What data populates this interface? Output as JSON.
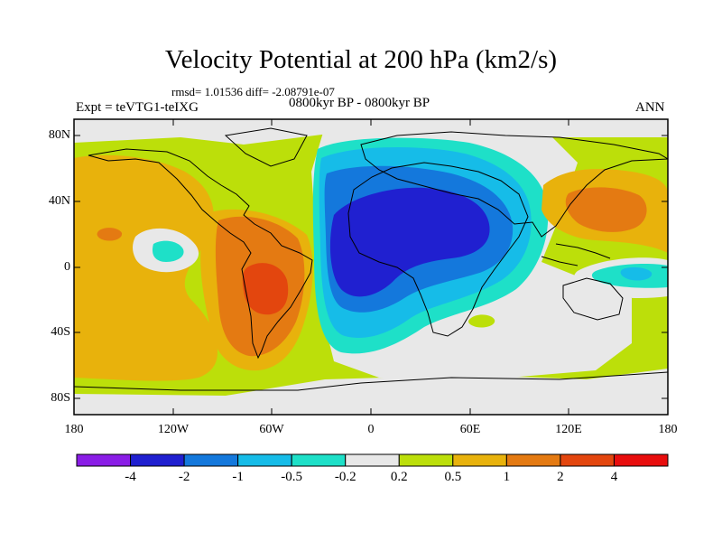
{
  "title": "Velocity Potential at 200 hPa (km2/s)",
  "stats": "rmsd= 1.01536 diff= -2.08791e-07",
  "experiment": "Expt = teVTG1-teIXG",
  "period": "0800kyr BP - 0800kyr BP",
  "season": "ANN",
  "map": {
    "lat_range": [
      -90,
      90
    ],
    "lon_range": [
      -180,
      180
    ],
    "lat_ticks": [
      "80N",
      "40N",
      "0",
      "40S",
      "80S"
    ],
    "lon_ticks": [
      "180",
      "120W",
      "60W",
      "0",
      "60E",
      "120E",
      "180"
    ]
  },
  "colorbar": {
    "labels": [
      "-4",
      "-2",
      "-1",
      "-0.5",
      "-0.2",
      "0.2",
      "0.5",
      "1",
      "2",
      "4"
    ],
    "colors": [
      "#8a1de6",
      "#2020d0",
      "#1478dc",
      "#16bce8",
      "#1ee0c8",
      "#e8e8e8",
      "#bcdf0a",
      "#e8b20c",
      "#e47a12",
      "#e3460e",
      "#e80d0d"
    ]
  },
  "chart_data": {
    "type": "heatmap",
    "title": "Velocity Potential at 200 hPa (km2/s)",
    "contour_levels": [
      -4,
      -2,
      -1,
      -0.5,
      -0.2,
      0.2,
      0.5,
      1,
      2,
      4
    ],
    "field_centers": [
      {
        "name": "africa-minimum",
        "lon": 25,
        "lat": 5,
        "value": -2.5
      },
      {
        "name": "south-america-maximum",
        "lon": -63,
        "lat": -5,
        "value": 2.3
      },
      {
        "name": "east-pacific-maximum",
        "lon": -150,
        "lat": 20,
        "value": 0.9
      },
      {
        "name": "east-asia-maximum",
        "lon": 145,
        "lat": 35,
        "value": 1.2
      },
      {
        "name": "central-pacific-minimum",
        "lon": -140,
        "lat": 10,
        "value": -0.4
      },
      {
        "name": "west-pacific-minimum",
        "lon": 158,
        "lat": -2,
        "value": -0.6
      }
    ]
  }
}
